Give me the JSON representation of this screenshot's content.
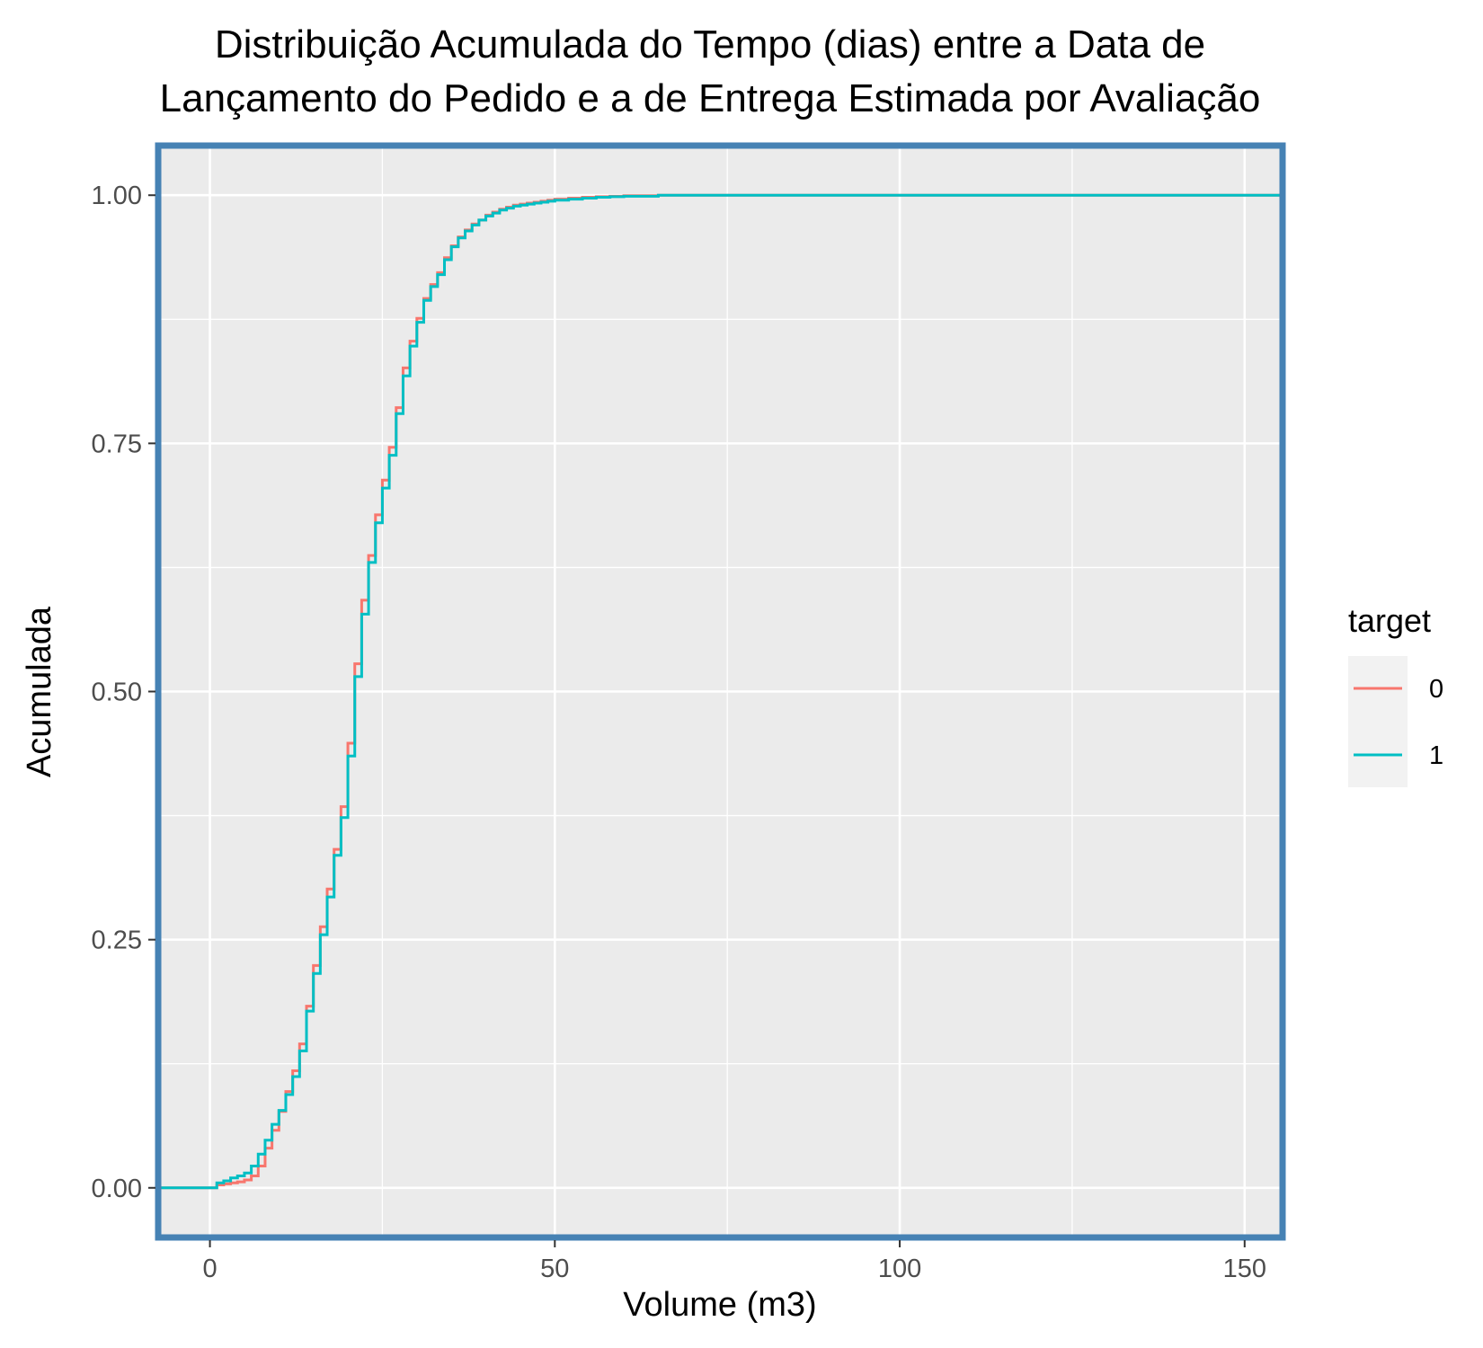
{
  "chart_data": {
    "type": "line",
    "step": true,
    "title": [
      "Distribuição Acumulada do Tempo (dias) entre a Data de",
      "Lançamento do Pedido e a de Entrega Estimada por Avaliação"
    ],
    "xlabel": "Volume (m3)",
    "ylabel": "Acumulada",
    "xlim": [
      -7.5,
      155.5
    ],
    "ylim": [
      -0.05,
      1.05
    ],
    "x_ticks": [
      0,
      50,
      100,
      150
    ],
    "x_tick_labels": [
      "0",
      "50",
      "100",
      "150"
    ],
    "x_minor_ticks": [
      25,
      75,
      125
    ],
    "y_ticks": [
      0,
      0.25,
      0.5,
      0.75,
      1
    ],
    "y_tick_labels": [
      "0.00",
      "0.25",
      "0.50",
      "0.75",
      "1.00"
    ],
    "y_minor_ticks": [
      0.125,
      0.375,
      0.625,
      0.875
    ],
    "grid": true,
    "legend": {
      "title": "target",
      "position": "right"
    },
    "panel_background": "#ebebeb",
    "border_color": "#4682b4",
    "series": [
      {
        "name": "0",
        "color": "#f8766d",
        "points": [
          [
            -7.5,
            0
          ],
          [
            0,
            0
          ],
          [
            1,
            0.003
          ],
          [
            2,
            0.004
          ],
          [
            3,
            0.005
          ],
          [
            4,
            0.006
          ],
          [
            5,
            0.008
          ],
          [
            6,
            0.012
          ],
          [
            7,
            0.022
          ],
          [
            8,
            0.04
          ],
          [
            9,
            0.058
          ],
          [
            10,
            0.077
          ],
          [
            11,
            0.097
          ],
          [
            12,
            0.118
          ],
          [
            13,
            0.145
          ],
          [
            14,
            0.183
          ],
          [
            15,
            0.224
          ],
          [
            16,
            0.263
          ],
          [
            17,
            0.301
          ],
          [
            18,
            0.341
          ],
          [
            19,
            0.384
          ],
          [
            20,
            0.448
          ],
          [
            21,
            0.528
          ],
          [
            22,
            0.592
          ],
          [
            23,
            0.637
          ],
          [
            24,
            0.678
          ],
          [
            25,
            0.713
          ],
          [
            26,
            0.746
          ],
          [
            27,
            0.786
          ],
          [
            28,
            0.826
          ],
          [
            29,
            0.853
          ],
          [
            30,
            0.876
          ],
          [
            31,
            0.896
          ],
          [
            32,
            0.91
          ],
          [
            33,
            0.922
          ],
          [
            34,
            0.937
          ],
          [
            35,
            0.949
          ],
          [
            36,
            0.958
          ],
          [
            37,
            0.965
          ],
          [
            38,
            0.971
          ],
          [
            39,
            0.975
          ],
          [
            40,
            0.98
          ],
          [
            41,
            0.983
          ],
          [
            42,
            0.986
          ],
          [
            43,
            0.988
          ],
          [
            44,
            0.99
          ],
          [
            45,
            0.991
          ],
          [
            46,
            0.992
          ],
          [
            47,
            0.993
          ],
          [
            48,
            0.994
          ],
          [
            49,
            0.995
          ],
          [
            50,
            0.996
          ],
          [
            52,
            0.997
          ],
          [
            54,
            0.998
          ],
          [
            56,
            0.9985
          ],
          [
            58,
            0.999
          ],
          [
            60,
            0.9995
          ],
          [
            65,
            1.0
          ],
          [
            155.5,
            1.0
          ]
        ]
      },
      {
        "name": "1",
        "color": "#00bfc4",
        "points": [
          [
            -7.5,
            0
          ],
          [
            0,
            0
          ],
          [
            1,
            0.005
          ],
          [
            2,
            0.007
          ],
          [
            3,
            0.01
          ],
          [
            4,
            0.012
          ],
          [
            5,
            0.015
          ],
          [
            6,
            0.022
          ],
          [
            7,
            0.034
          ],
          [
            8,
            0.048
          ],
          [
            9,
            0.064
          ],
          [
            10,
            0.078
          ],
          [
            11,
            0.094
          ],
          [
            12,
            0.112
          ],
          [
            13,
            0.138
          ],
          [
            14,
            0.178
          ],
          [
            15,
            0.216
          ],
          [
            16,
            0.255
          ],
          [
            17,
            0.293
          ],
          [
            18,
            0.335
          ],
          [
            19,
            0.373
          ],
          [
            20,
            0.435
          ],
          [
            21,
            0.515
          ],
          [
            22,
            0.578
          ],
          [
            23,
            0.63
          ],
          [
            24,
            0.67
          ],
          [
            25,
            0.705
          ],
          [
            26,
            0.738
          ],
          [
            27,
            0.78
          ],
          [
            28,
            0.818
          ],
          [
            29,
            0.848
          ],
          [
            30,
            0.872
          ],
          [
            31,
            0.894
          ],
          [
            32,
            0.908
          ],
          [
            33,
            0.92
          ],
          [
            34,
            0.935
          ],
          [
            35,
            0.948
          ],
          [
            36,
            0.957
          ],
          [
            37,
            0.964
          ],
          [
            38,
            0.97
          ],
          [
            39,
            0.975
          ],
          [
            40,
            0.979
          ],
          [
            41,
            0.982
          ],
          [
            42,
            0.985
          ],
          [
            43,
            0.987
          ],
          [
            44,
            0.989
          ],
          [
            45,
            0.99
          ],
          [
            46,
            0.991
          ],
          [
            47,
            0.992
          ],
          [
            48,
            0.993
          ],
          [
            49,
            0.994
          ],
          [
            50,
            0.995
          ],
          [
            52,
            0.996
          ],
          [
            54,
            0.997
          ],
          [
            56,
            0.998
          ],
          [
            58,
            0.9985
          ],
          [
            60,
            0.999
          ],
          [
            65,
            1.0
          ],
          [
            155.5,
            1.0
          ]
        ]
      }
    ]
  }
}
